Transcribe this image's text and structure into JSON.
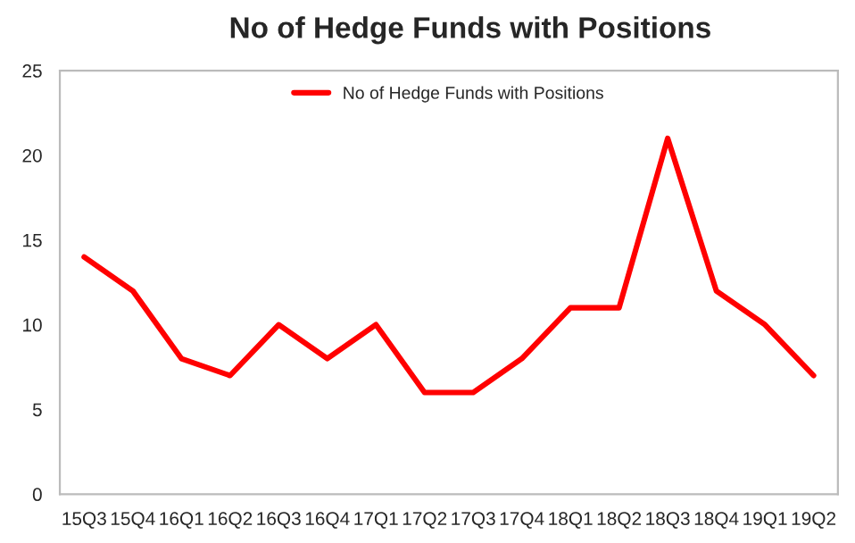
{
  "chart_data": {
    "type": "line",
    "title": "No of Hedge Funds with Positions",
    "categories": [
      "15Q3",
      "15Q4",
      "16Q1",
      "16Q2",
      "16Q3",
      "16Q4",
      "17Q1",
      "17Q2",
      "17Q3",
      "17Q4",
      "18Q1",
      "18Q2",
      "18Q3",
      "18Q4",
      "19Q1",
      "19Q2"
    ],
    "series": [
      {
        "name": "No of Hedge Funds with Positions",
        "color": "#ff0000",
        "values": [
          14,
          12,
          8,
          7,
          10,
          8,
          10,
          6,
          6,
          8,
          11,
          11,
          21,
          12,
          10,
          7
        ]
      }
    ],
    "ylim": [
      0,
      25
    ],
    "yticks": [
      0,
      5,
      10,
      15,
      20,
      25
    ],
    "grid": false,
    "legend": "top",
    "marker": "none",
    "line_style": "solid"
  }
}
